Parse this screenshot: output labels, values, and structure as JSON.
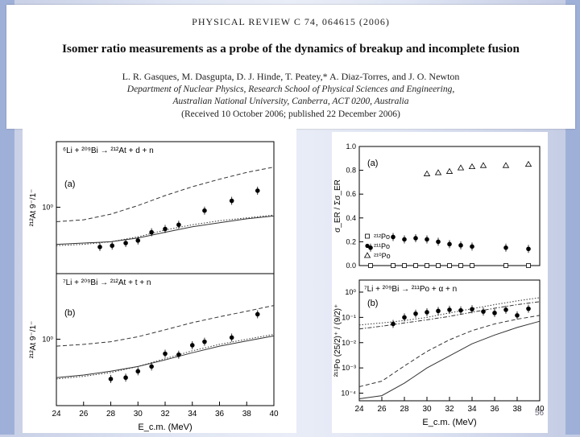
{
  "header": {
    "journal": "PHYSICAL REVIEW C 74, 064615 (2006)",
    "title": "Isomer ratio measurements as a probe of the dynamics of breakup and incomplete fusion",
    "authors": "L. R. Gasques, M. Dasgupta, D. J. Hinde, T. Peatey,* A. Diaz-Torres, and J. O. Newton",
    "affiliation_1": "Department of Nuclear Physics, Research School of Physical Sciences and Engineering,",
    "affiliation_2": "Australian National University, Canberra, ACT 0200, Australia",
    "received": "(Received 10 October 2006; published 22 December 2006)"
  },
  "slide": {
    "page_number": "56"
  },
  "colors": {
    "panel": "#ffffff",
    "ink": "#000000",
    "slide_bg": "#dfe5f3"
  },
  "chart_data": [
    {
      "type": "scatter",
      "panel": "(a)",
      "reaction": "⁶Li + ²⁰⁹Bi → ²¹²At + d + n",
      "ylabel": "²¹²At 9⁻/1⁻",
      "xlabel": "",
      "xlim": [
        24,
        40
      ],
      "ylim": [
        0.45,
        2.2
      ],
      "yscale": "log",
      "ytick_labels": [
        "10⁰"
      ],
      "series": [
        {
          "points": [
            [
              27.2,
              0.62
            ],
            [
              28.1,
              0.63
            ],
            [
              29.1,
              0.65
            ],
            [
              30.0,
              0.67
            ],
            [
              31.0,
              0.74
            ],
            [
              32.0,
              0.77
            ],
            [
              33.0,
              0.81
            ],
            [
              34.9,
              0.96
            ],
            [
              36.9,
              1.08
            ],
            [
              38.8,
              1.22
            ]
          ]
        }
      ],
      "curves": [
        {
          "style": "dashed",
          "points": [
            [
              24,
              0.84
            ],
            [
              26,
              0.86
            ],
            [
              28,
              0.92
            ],
            [
              30,
              1.02
            ],
            [
              32,
              1.15
            ],
            [
              34,
              1.28
            ],
            [
              36,
              1.4
            ],
            [
              38,
              1.52
            ],
            [
              40,
              1.62
            ]
          ]
        },
        {
          "style": "solid",
          "points": [
            [
              24,
              0.64
            ],
            [
              26,
              0.65
            ],
            [
              28,
              0.66
            ],
            [
              30,
              0.69
            ],
            [
              32,
              0.74
            ],
            [
              34,
              0.79
            ],
            [
              36,
              0.83
            ],
            [
              38,
              0.87
            ],
            [
              40,
              0.9
            ]
          ]
        },
        {
          "style": "dotted",
          "points": [
            [
              24,
              0.63
            ],
            [
              26,
              0.64
            ],
            [
              28,
              0.66
            ],
            [
              30,
              0.7
            ],
            [
              32,
              0.76
            ],
            [
              34,
              0.81
            ],
            [
              36,
              0.85
            ],
            [
              38,
              0.88
            ],
            [
              40,
              0.91
            ]
          ]
        }
      ]
    },
    {
      "type": "scatter",
      "panel": "(b)",
      "reaction": "⁷Li + ²⁰⁹Bi → ²¹²At + t + n",
      "ylabel": "²¹²At 9⁻/1⁻",
      "xlabel": "E_c.m. (MeV)",
      "xlim": [
        24,
        40
      ],
      "ylim": [
        0.45,
        2.2
      ],
      "yscale": "log",
      "xticks": [
        24,
        26,
        28,
        30,
        32,
        34,
        36,
        38,
        40
      ],
      "ytick_labels": [
        "10⁰"
      ],
      "series": [
        {
          "points": [
            [
              28.0,
              0.62
            ],
            [
              29.1,
              0.63
            ],
            [
              30.0,
              0.68
            ],
            [
              31.0,
              0.72
            ],
            [
              32.0,
              0.84
            ],
            [
              33.0,
              0.83
            ],
            [
              34.0,
              0.93
            ],
            [
              34.9,
              0.97
            ],
            [
              36.9,
              1.02
            ],
            [
              38.8,
              1.35
            ]
          ]
        }
      ],
      "curves": [
        {
          "style": "dashed",
          "points": [
            [
              24,
              0.92
            ],
            [
              26,
              0.94
            ],
            [
              28,
              0.97
            ],
            [
              30,
              1.03
            ],
            [
              32,
              1.12
            ],
            [
              34,
              1.22
            ],
            [
              36,
              1.31
            ],
            [
              38,
              1.4
            ],
            [
              40,
              1.5
            ]
          ]
        },
        {
          "style": "solid",
          "points": [
            [
              24,
              0.63
            ],
            [
              26,
              0.65
            ],
            [
              28,
              0.68
            ],
            [
              30,
              0.72
            ],
            [
              32,
              0.78
            ],
            [
              34,
              0.85
            ],
            [
              36,
              0.92
            ],
            [
              38,
              0.98
            ],
            [
              40,
              1.04
            ]
          ]
        },
        {
          "style": "dotted",
          "points": [
            [
              24,
              0.62
            ],
            [
              26,
              0.64
            ],
            [
              28,
              0.67
            ],
            [
              30,
              0.72
            ],
            [
              32,
              0.79
            ],
            [
              34,
              0.87
            ],
            [
              36,
              0.94
            ],
            [
              38,
              1.0
            ],
            [
              40,
              1.06
            ]
          ]
        }
      ]
    },
    {
      "type": "scatter",
      "panel": "(a)",
      "ylabel": "σ_ER / Σσ_ER",
      "xlabel": "",
      "xlim": [
        24,
        40
      ],
      "ylim": [
        0.0,
        1.0
      ],
      "yticks": [
        0.0,
        0.2,
        0.4,
        0.6,
        0.8,
        1.0
      ],
      "yticklabels": [
        "0.0",
        "0.2",
        "0.4",
        "0.6",
        "0.8",
        "1.0"
      ],
      "legend": [
        "²¹²Po",
        "²¹¹Po",
        "²¹⁰Po"
      ],
      "series": [
        {
          "name": "²¹²Po",
          "marker": "square",
          "points": [
            [
              25.0,
              0.0
            ],
            [
              27.0,
              0.0
            ],
            [
              28.0,
              0.0
            ],
            [
              29.0,
              0.0
            ],
            [
              30.0,
              0.0
            ],
            [
              31.0,
              0.0
            ],
            [
              32.0,
              0.0
            ],
            [
              33.0,
              0.0
            ],
            [
              34.0,
              0.0
            ],
            [
              37.0,
              0.0
            ],
            [
              39.0,
              0.0
            ]
          ]
        },
        {
          "name": "²¹¹Po",
          "marker": "circle",
          "points": [
            [
              25.0,
              0.15
            ],
            [
              27.0,
              0.24
            ],
            [
              28.0,
              0.22
            ],
            [
              29.0,
              0.23
            ],
            [
              30.0,
              0.22
            ],
            [
              31.0,
              0.2
            ],
            [
              32.0,
              0.18
            ],
            [
              33.0,
              0.17
            ],
            [
              34.0,
              0.16
            ],
            [
              37.0,
              0.15
            ],
            [
              39.0,
              0.14
            ]
          ]
        },
        {
          "name": "²¹⁰Po",
          "marker": "triangle",
          "points": [
            [
              30.0,
              0.77
            ],
            [
              31.0,
              0.78
            ],
            [
              32.0,
              0.79
            ],
            [
              33.0,
              0.82
            ],
            [
              34.0,
              0.83
            ],
            [
              35.0,
              0.84
            ],
            [
              37.0,
              0.84
            ],
            [
              39.0,
              0.85
            ]
          ]
        }
      ]
    },
    {
      "type": "scatter",
      "panel": "(b)",
      "reaction": "⁷Li + ²⁰⁹Bi → ²¹¹Po + α + n",
      "ylabel": "²¹¹Po (25/2)⁺ / (9/2)⁺",
      "xlabel": "E_c.m. (MeV)",
      "xlim": [
        24,
        40
      ],
      "yscale": "log",
      "ylim": [
        5e-05,
        3
      ],
      "ytick_labels": [
        "10⁰",
        "10⁻¹",
        "10⁻²",
        "10⁻³",
        "10⁻⁴"
      ],
      "xticks": [
        24,
        26,
        28,
        30,
        32,
        34,
        36,
        38,
        40
      ],
      "series": [
        {
          "points": [
            [
              27.0,
              0.055
            ],
            [
              28.0,
              0.1
            ],
            [
              29.0,
              0.14
            ],
            [
              30.0,
              0.16
            ],
            [
              31.0,
              0.18
            ],
            [
              32.0,
              0.2
            ],
            [
              33.0,
              0.19
            ],
            [
              34.0,
              0.21
            ],
            [
              35.0,
              0.17
            ],
            [
              36.0,
              0.15
            ],
            [
              37.0,
              0.2
            ],
            [
              38.0,
              0.12
            ],
            [
              39.0,
              0.22
            ]
          ]
        }
      ],
      "curves": [
        {
          "style": "dotted",
          "points": [
            [
              24,
              0.05
            ],
            [
              26,
              0.06
            ],
            [
              28,
              0.075
            ],
            [
              30,
              0.1
            ],
            [
              32,
              0.15
            ],
            [
              34,
              0.22
            ],
            [
              36,
              0.32
            ],
            [
              38,
              0.45
            ],
            [
              40,
              0.6
            ]
          ]
        },
        {
          "style": "dash-dot",
          "points": [
            [
              24,
              0.035
            ],
            [
              26,
              0.045
            ],
            [
              28,
              0.06
            ],
            [
              30,
              0.08
            ],
            [
              32,
              0.11
            ],
            [
              34,
              0.16
            ],
            [
              36,
              0.23
            ],
            [
              38,
              0.32
            ],
            [
              40,
              0.42
            ]
          ]
        },
        {
          "style": "dashed",
          "points": [
            [
              24,
              0.00018
            ],
            [
              26,
              0.0003
            ],
            [
              28,
              0.0012
            ],
            [
              30,
              0.0045
            ],
            [
              32,
              0.013
            ],
            [
              34,
              0.03
            ],
            [
              36,
              0.055
            ],
            [
              38,
              0.085
            ],
            [
              40,
              0.12
            ]
          ]
        },
        {
          "style": "solid",
          "points": [
            [
              24,
              6e-05
            ],
            [
              26,
              8e-05
            ],
            [
              28,
              0.00025
            ],
            [
              30,
              0.001
            ],
            [
              32,
              0.003
            ],
            [
              34,
              0.009
            ],
            [
              36,
              0.02
            ],
            [
              38,
              0.04
            ],
            [
              40,
              0.07
            ]
          ]
        }
      ]
    }
  ]
}
